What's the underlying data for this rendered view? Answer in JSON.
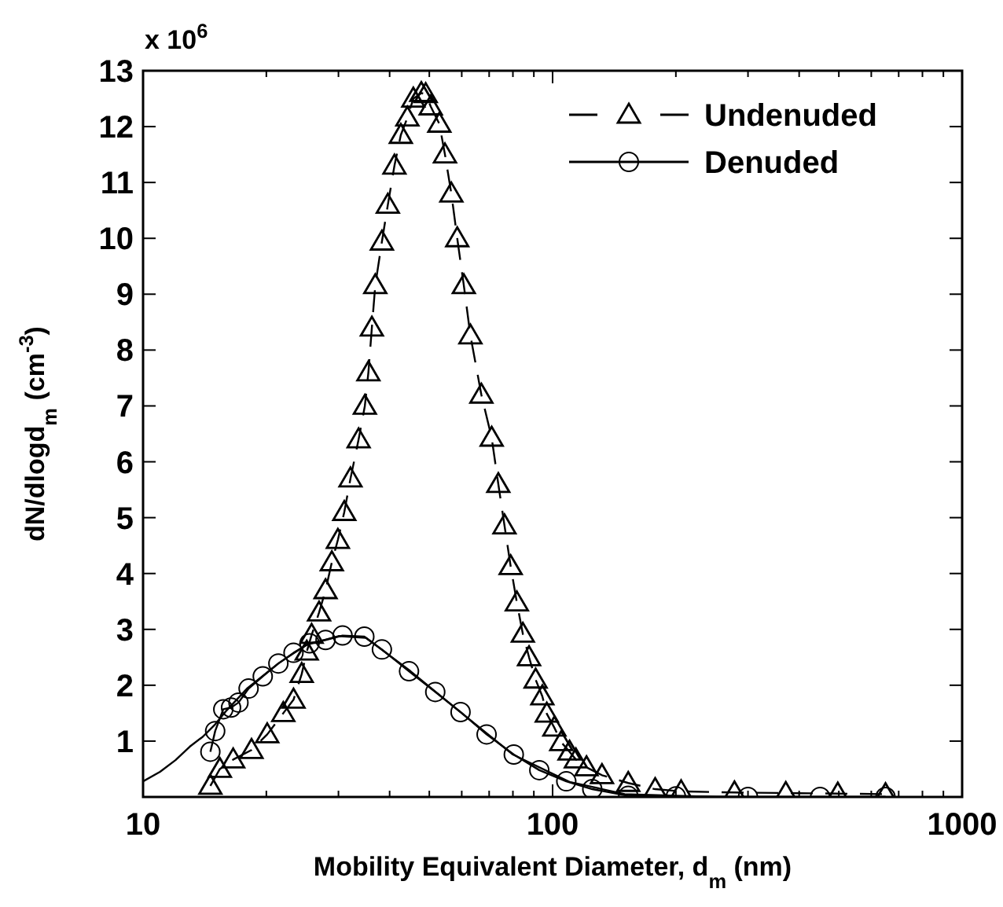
{
  "chart_data": {
    "type": "line",
    "xlabel": "Mobility Equivalent Diameter, d$_{m}$ (nm)",
    "ylabel": "dN/dlogd$_{m}$ (cm$^{-3}$)",
    "annotations": [
      "x 10$^{6}$"
    ],
    "log": "x",
    "xlim": [
      10,
      1000
    ],
    "xticks": [
      10,
      {
        "value": 20,
        "label": null
      },
      {
        "value": 30,
        "label": null
      },
      {
        "value": 40,
        "label": null
      },
      {
        "value": 50,
        "label": null
      },
      {
        "value": 60,
        "label": null
      },
      {
        "value": 70,
        "label": null
      },
      {
        "value": 80,
        "label": null
      },
      {
        "value": 90,
        "label": null
      },
      100,
      {
        "value": 200,
        "label": null
      },
      {
        "value": 300,
        "label": null
      },
      {
        "value": 400,
        "label": null
      },
      {
        "value": 500,
        "label": null
      },
      {
        "value": 600,
        "label": null
      },
      {
        "value": 700,
        "label": null
      },
      {
        "value": 800,
        "label": null
      },
      {
        "value": 900,
        "label": null
      },
      1000
    ],
    "ylim": [
      0,
      13
    ],
    "yticks": [
      1,
      2,
      3,
      4,
      5,
      6,
      7,
      8,
      9,
      10,
      11,
      12,
      13
    ],
    "grid": false,
    "legend": "top right",
    "series": [
      {
        "name": "Undenuded",
        "color": "#000000",
        "marker": "triangle",
        "line_style": "dashed",
        "x": [
          14.6,
          15.4,
          16.6,
          18.4,
          20.1,
          22.0,
          23.3,
          24.4,
          25.1,
          25.8,
          26.9,
          27.9,
          28.9,
          29.9,
          31.0,
          32.1,
          33.6,
          34.8,
          35.5,
          36.2,
          36.9,
          38.3,
          39.6,
          41.1,
          42.6,
          44.2,
          45.7,
          47.8,
          49.0,
          50.4,
          52.9,
          54.6,
          56.6,
          58.5,
          60.7,
          63.0,
          67.0,
          71.0,
          73.7,
          76.3,
          79.0,
          81.8,
          84.6,
          87.6,
          90.9,
          94.4,
          96.8,
          101,
          105,
          110,
          114,
          121,
          132,
          153,
          178,
          206,
          278,
          371,
          497,
          650
        ],
        "values": [
          0.2,
          0.5,
          0.67,
          0.84,
          1.12,
          1.5,
          1.74,
          2.2,
          2.6,
          2.9,
          3.3,
          3.7,
          4.2,
          4.6,
          5.1,
          5.7,
          6.4,
          7.0,
          7.6,
          8.4,
          9.16,
          9.94,
          10.6,
          11.3,
          11.85,
          12.16,
          12.5,
          12.6,
          12.58,
          12.36,
          12.05,
          11.5,
          10.8,
          10.0,
          9.16,
          8.26,
          7.2,
          6.43,
          5.6,
          4.86,
          4.13,
          3.48,
          2.92,
          2.5,
          2.1,
          1.8,
          1.49,
          1.24,
          0.98,
          0.81,
          0.67,
          0.53,
          0.39,
          0.25,
          0.14,
          0.1,
          0.08,
          0.07,
          0.06,
          0.05
        ]
      },
      {
        "name": "Denuded",
        "color": "#000000",
        "marker": "circle",
        "line_style": "solid",
        "x": [
          14.6,
          15.0,
          15.7,
          16.4,
          17.1,
          18.1,
          19.6,
          21.4,
          23.3,
          25.5,
          27.9,
          30.7,
          34.7,
          38.3,
          44.6,
          51.7,
          59.6,
          69,
          80.4,
          92.8,
          108,
          125,
          153,
          200,
          300,
          450,
          650
        ],
        "values": [
          0.81,
          1.18,
          1.57,
          1.6,
          1.69,
          1.94,
          2.16,
          2.39,
          2.58,
          2.75,
          2.81,
          2.89,
          2.87,
          2.64,
          2.25,
          1.88,
          1.52,
          1.12,
          0.76,
          0.48,
          0.28,
          0.14,
          0.02,
          0.01,
          0,
          0,
          0
        ]
      },
      {
        "color": "#000000",
        "marker": "none",
        "line_style": "solid",
        "x": [
          10,
          11,
          12,
          13,
          14,
          15,
          16,
          18,
          21.4,
          25,
          30,
          35,
          45,
          60,
          80,
          110,
          150,
          250,
          650
        ],
        "values": [
          0.28,
          0.45,
          0.66,
          0.9,
          1.08,
          1.3,
          1.55,
          1.95,
          2.39,
          2.72,
          2.88,
          2.85,
          2.25,
          1.5,
          0.76,
          0.27,
          0.05,
          0,
          0
        ]
      }
    ]
  }
}
